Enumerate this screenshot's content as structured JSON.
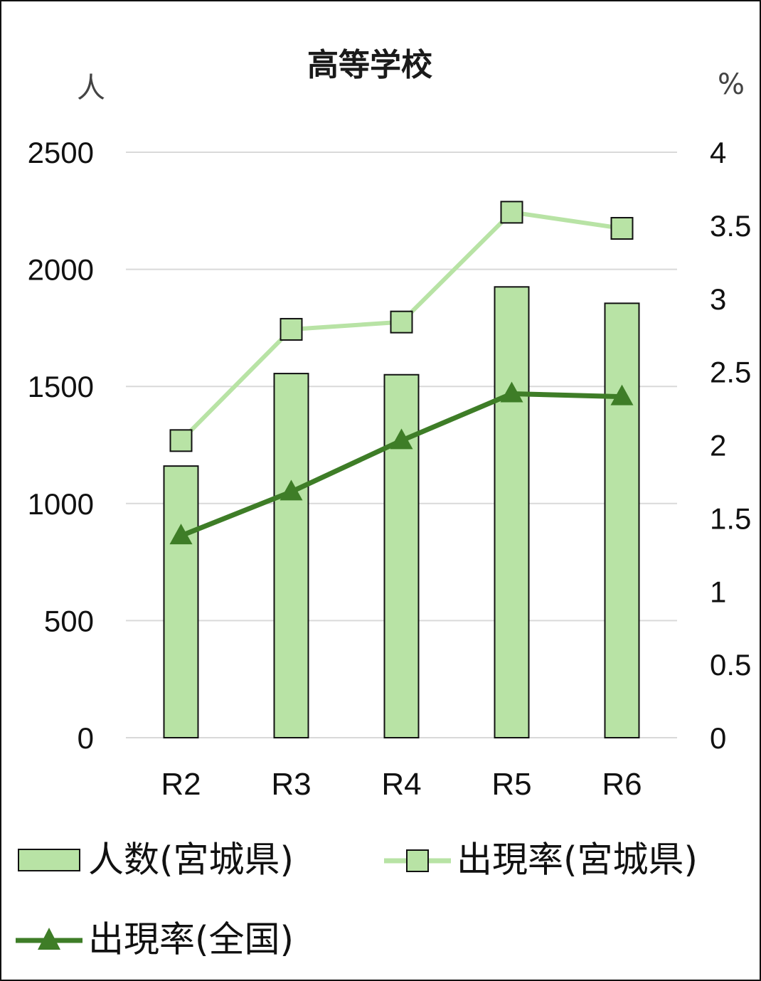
{
  "chart_data": {
    "type": "bar",
    "title": "高等学校",
    "categories": [
      "R2",
      "R3",
      "R4",
      "R5",
      "R6"
    ],
    "y_left": {
      "unit": "人",
      "ticks": [
        "0",
        "500",
        "1000",
        "1500",
        "2000",
        "2500"
      ],
      "range": [
        0,
        2500
      ]
    },
    "y_right": {
      "unit": "%",
      "ticks": [
        "0",
        "0.5",
        "1",
        "1.5",
        "2",
        "2.5",
        "3",
        "3.5",
        "4"
      ],
      "range": [
        0,
        4
      ]
    },
    "grid": true,
    "legend_position": "bottom",
    "series": [
      {
        "name": "人数(宮城県)",
        "kind": "bar",
        "axis": "left",
        "values": [
          1160,
          1555,
          1550,
          1925,
          1855
        ],
        "color": "#b8e3a5"
      },
      {
        "name": "出現率(宮城県)",
        "kind": "line",
        "axis": "right",
        "marker": "square",
        "values": [
          2.03,
          2.79,
          2.84,
          3.59,
          3.48
        ],
        "color": "#b8e3a5"
      },
      {
        "name": "出現率(全国)",
        "kind": "line",
        "axis": "right",
        "marker": "triangle",
        "values": [
          1.38,
          1.68,
          2.03,
          2.35,
          2.33
        ],
        "color": "#3e7d27"
      }
    ]
  }
}
